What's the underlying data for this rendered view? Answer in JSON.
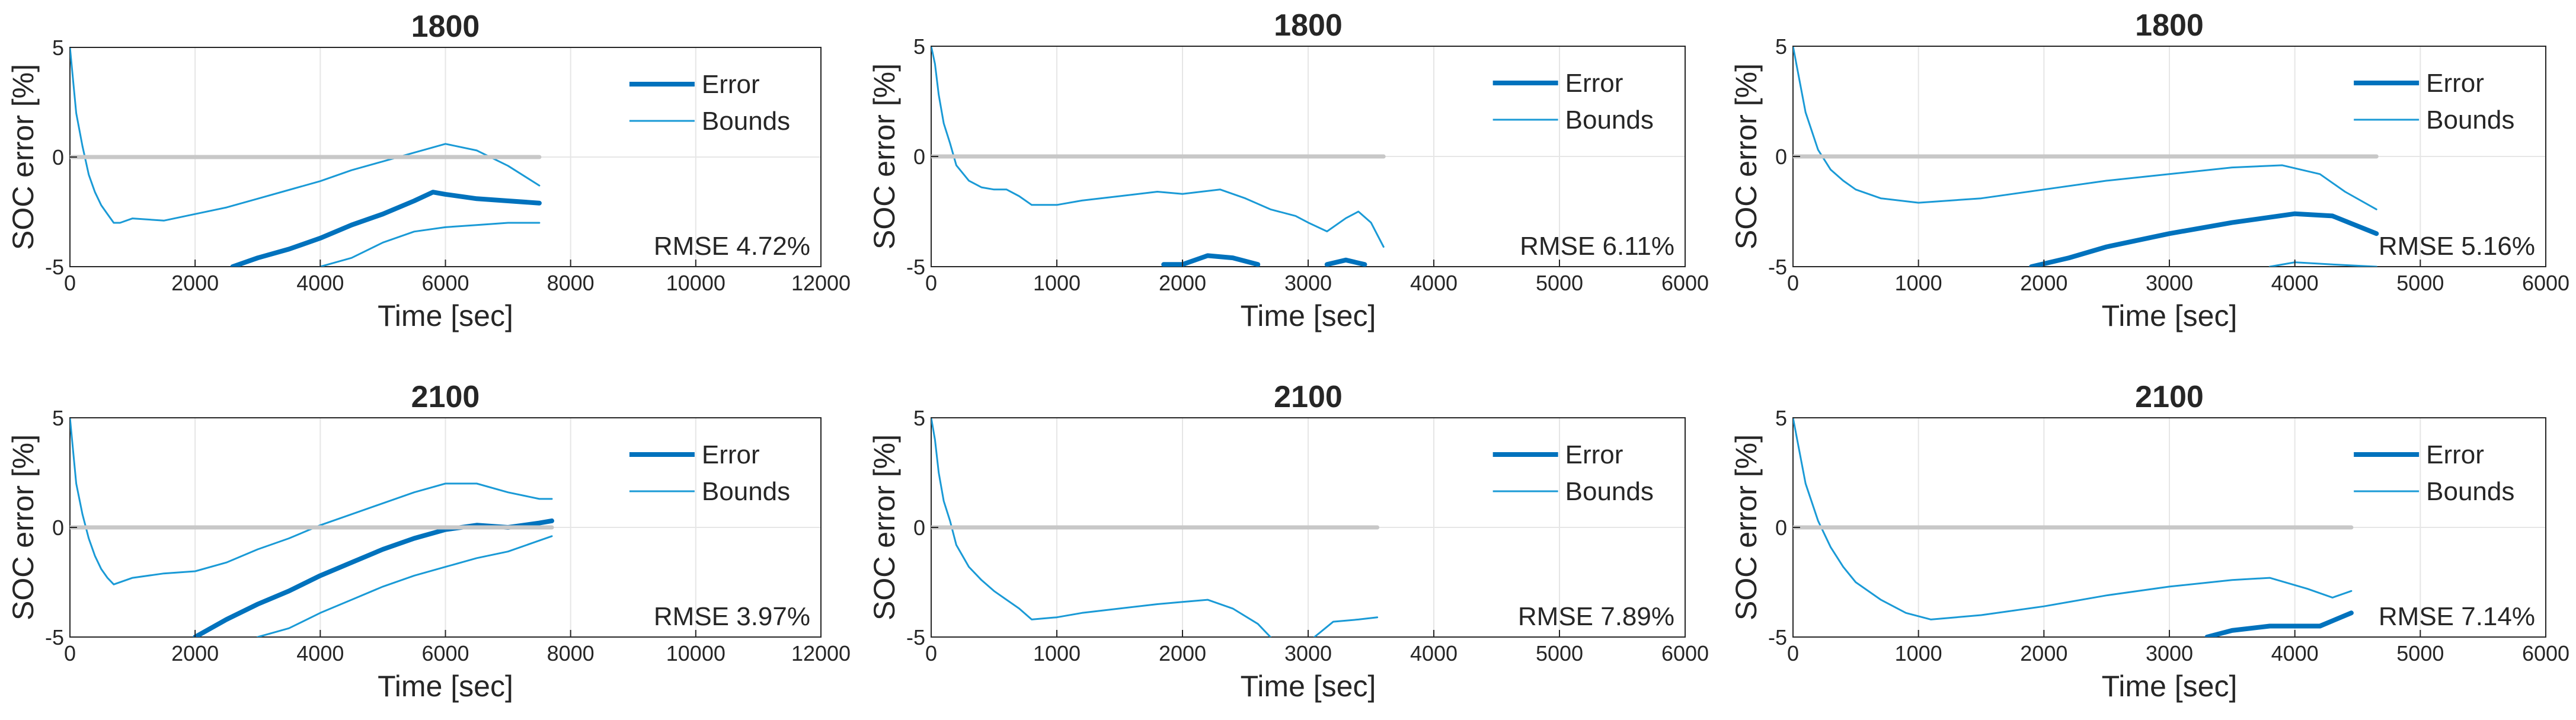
{
  "figure": {
    "colors": {
      "error": "#0072BD",
      "bounds": "#1A9AD6",
      "zero": "#C8C8C8",
      "grid": "#E6E6E6",
      "axis": "#262626"
    },
    "line_styles": {
      "error_width": "thick",
      "bounds_width": "thin"
    },
    "grid": true,
    "legend_placement": "top-right"
  },
  "chart_data": [
    {
      "type": "line",
      "title": "1800",
      "xlabel": "Time [sec]",
      "ylabel": "SOC error [%]",
      "xlim": [
        0,
        12000
      ],
      "ylim": [
        -5,
        5
      ],
      "xticks": [
        0,
        2000,
        4000,
        6000,
        8000,
        10000,
        12000
      ],
      "yticks": [
        -5,
        0,
        5
      ],
      "legend": [
        "Error",
        "Bounds"
      ],
      "annotation": "RMSE 4.72%",
      "series": [
        {
          "name": "Error",
          "x": [
            2600,
            3000,
            3500,
            4000,
            4500,
            5000,
            5500,
            5800,
            6000,
            6500,
            7000,
            7500
          ],
          "y": [
            -5,
            -4.6,
            -4.2,
            -3.7,
            -3.1,
            -2.6,
            -2.0,
            -1.6,
            -1.7,
            -1.9,
            -2.0,
            -2.1
          ]
        },
        {
          "name": "Bounds",
          "x": [
            0,
            50,
            100,
            200,
            300,
            400,
            500,
            600,
            700,
            800,
            1000,
            1500,
            2000,
            2500,
            3000,
            3500,
            4000,
            4500,
            5000,
            5500,
            6000,
            6500,
            7000,
            7500
          ],
          "y": [
            5,
            3.5,
            2,
            0.5,
            -0.8,
            -1.6,
            -2.2,
            -2.6,
            -3.0,
            -3.0,
            -2.8,
            -2.9,
            -2.6,
            -2.3,
            -1.9,
            -1.5,
            -1.1,
            -0.6,
            -0.2,
            0.2,
            0.6,
            0.3,
            -0.4,
            -1.3
          ]
        },
        {
          "name": "Bounds",
          "x": [
            4000,
            4500,
            5000,
            5500,
            6000,
            6500,
            7000,
            7500
          ],
          "y": [
            -5,
            -4.6,
            -3.9,
            -3.4,
            -3.2,
            -3.1,
            -3.0,
            -3.0
          ]
        },
        {
          "name": "",
          "x": [
            0,
            7500
          ],
          "y": [
            0,
            0
          ]
        }
      ]
    },
    {
      "type": "line",
      "title": "1800",
      "xlabel": "Time [sec]",
      "ylabel": "SOC error [%]",
      "xlim": [
        0,
        6000
      ],
      "ylim": [
        -5,
        5
      ],
      "xticks": [
        0,
        1000,
        2000,
        3000,
        4000,
        5000,
        6000
      ],
      "yticks": [
        -5,
        0,
        5
      ],
      "legend": [
        "Error",
        "Bounds"
      ],
      "annotation": "RMSE 6.11%",
      "series": [
        {
          "name": "Error",
          "x": [
            1850,
            2000,
            2200,
            2400,
            2600
          ],
          "y": [
            -4.9,
            -4.9,
            -4.5,
            -4.6,
            -4.9
          ]
        },
        {
          "name": "Error",
          "x": [
            3150,
            3300,
            3450
          ],
          "y": [
            -4.9,
            -4.7,
            -4.9
          ]
        },
        {
          "name": "Bounds",
          "x": [
            0,
            30,
            60,
            100,
            150,
            200,
            300,
            400,
            500,
            600,
            700,
            800,
            1000,
            1200,
            1500,
            1800,
            2000,
            2300,
            2500,
            2700,
            2900,
            3000,
            3150,
            3300,
            3400,
            3500,
            3600
          ],
          "y": [
            5,
            4.2,
            2.8,
            1.5,
            0.6,
            -0.4,
            -1.1,
            -1.4,
            -1.5,
            -1.5,
            -1.8,
            -2.2,
            -2.2,
            -2.0,
            -1.8,
            -1.6,
            -1.7,
            -1.5,
            -1.9,
            -2.4,
            -2.7,
            -3.0,
            -3.4,
            -2.8,
            -2.5,
            -3.0,
            -4.1
          ]
        },
        {
          "name": "",
          "x": [
            0,
            3600
          ],
          "y": [
            0,
            0
          ]
        }
      ]
    },
    {
      "type": "line",
      "title": "1800",
      "xlabel": "Time [sec]",
      "ylabel": "SOC error [%]",
      "xlim": [
        0,
        6000
      ],
      "ylim": [
        -5,
        5
      ],
      "xticks": [
        0,
        1000,
        2000,
        3000,
        4000,
        5000,
        6000
      ],
      "yticks": [
        -5,
        0,
        5
      ],
      "legend": [
        "Error",
        "Bounds"
      ],
      "annotation": "RMSE 5.16%",
      "series": [
        {
          "name": "Error",
          "x": [
            1900,
            2200,
            2500,
            3000,
            3500,
            4000,
            4300,
            4650
          ],
          "y": [
            -5,
            -4.6,
            -4.1,
            -3.5,
            -3.0,
            -2.6,
            -2.7,
            -3.5
          ]
        },
        {
          "name": "Bounds",
          "x": [
            0,
            50,
            100,
            200,
            300,
            400,
            500,
            700,
            1000,
            1500,
            2000,
            2500,
            3000,
            3500,
            3900,
            4200,
            4400,
            4650
          ],
          "y": [
            5,
            3.5,
            2,
            0.3,
            -0.6,
            -1.1,
            -1.5,
            -1.9,
            -2.1,
            -1.9,
            -1.5,
            -1.1,
            -0.8,
            -0.5,
            -0.4,
            -0.8,
            -1.6,
            -2.4
          ]
        },
        {
          "name": "Bounds",
          "x": [
            3800,
            4000,
            4300,
            4650
          ],
          "y": [
            -5,
            -4.8,
            -4.9,
            -5
          ]
        },
        {
          "name": "",
          "x": [
            0,
            4650
          ],
          "y": [
            0,
            0
          ]
        }
      ]
    },
    {
      "type": "line",
      "title": "2100",
      "xlabel": "Time [sec]",
      "ylabel": "SOC error [%]",
      "xlim": [
        0,
        12000
      ],
      "ylim": [
        -5,
        5
      ],
      "xticks": [
        0,
        2000,
        4000,
        6000,
        8000,
        10000,
        12000
      ],
      "yticks": [
        -5,
        0,
        5
      ],
      "legend": [
        "Error",
        "Bounds"
      ],
      "annotation": "RMSE 3.97%",
      "series": [
        {
          "name": "Error",
          "x": [
            2000,
            2500,
            3000,
            3500,
            4000,
            4500,
            5000,
            5500,
            6000,
            6500,
            7000,
            7500,
            7700
          ],
          "y": [
            -5,
            -4.2,
            -3.5,
            -2.9,
            -2.2,
            -1.6,
            -1.0,
            -0.5,
            -0.1,
            0.1,
            0.0,
            0.2,
            0.3
          ]
        },
        {
          "name": "Bounds",
          "x": [
            0,
            50,
            100,
            200,
            300,
            400,
            500,
            600,
            700,
            1000,
            1500,
            2000,
            2500,
            3000,
            3500,
            4000,
            4500,
            5000,
            5500,
            6000,
            6500,
            7000,
            7500,
            7700
          ],
          "y": [
            5,
            3.5,
            2,
            0.6,
            -0.5,
            -1.3,
            -1.9,
            -2.3,
            -2.6,
            -2.3,
            -2.1,
            -2.0,
            -1.6,
            -1.0,
            -0.5,
            0.1,
            0.6,
            1.1,
            1.6,
            2.0,
            2.0,
            1.6,
            1.3,
            1.3
          ]
        },
        {
          "name": "Bounds",
          "x": [
            3000,
            3500,
            4000,
            4500,
            5000,
            5500,
            6000,
            6500,
            7000,
            7500,
            7700
          ],
          "y": [
            -5,
            -4.6,
            -3.9,
            -3.3,
            -2.7,
            -2.2,
            -1.8,
            -1.4,
            -1.1,
            -0.6,
            -0.4
          ]
        },
        {
          "name": "",
          "x": [
            0,
            7700
          ],
          "y": [
            0,
            0
          ]
        }
      ]
    },
    {
      "type": "line",
      "title": "2100",
      "xlabel": "Time [sec]",
      "ylabel": "SOC error [%]",
      "xlim": [
        0,
        6000
      ],
      "ylim": [
        -5,
        5
      ],
      "xticks": [
        0,
        1000,
        2000,
        3000,
        4000,
        5000,
        6000
      ],
      "yticks": [
        -5,
        0,
        5
      ],
      "legend": [
        "Error",
        "Bounds"
      ],
      "annotation": "RMSE 7.89%",
      "series": [
        {
          "name": "Bounds",
          "x": [
            0,
            30,
            60,
            100,
            150,
            200,
            300,
            400,
            500,
            600,
            700,
            800,
            1000,
            1200,
            1500,
            1800,
            2000,
            2200,
            2400,
            2600,
            2700
          ],
          "y": [
            5,
            4,
            2.5,
            1.2,
            0.3,
            -0.8,
            -1.8,
            -2.4,
            -2.9,
            -3.3,
            -3.7,
            -4.2,
            -4.1,
            -3.9,
            -3.7,
            -3.5,
            -3.4,
            -3.3,
            -3.7,
            -4.4,
            -5
          ]
        },
        {
          "name": "Bounds",
          "x": [
            3050,
            3200,
            3400,
            3550
          ],
          "y": [
            -5,
            -4.3,
            -4.2,
            -4.1
          ]
        },
        {
          "name": "",
          "x": [
            0,
            3550
          ],
          "y": [
            0,
            0
          ]
        }
      ]
    },
    {
      "type": "line",
      "title": "2100",
      "xlabel": "Time [sec]",
      "ylabel": "SOC error [%]",
      "xlim": [
        0,
        6000
      ],
      "ylim": [
        -5,
        5
      ],
      "xticks": [
        0,
        1000,
        2000,
        3000,
        4000,
        5000,
        6000
      ],
      "yticks": [
        -5,
        0,
        5
      ],
      "legend": [
        "Error",
        "Bounds"
      ],
      "annotation": "RMSE 7.14%",
      "series": [
        {
          "name": "Error",
          "x": [
            3300,
            3500,
            3800,
            4000,
            4200,
            4450
          ],
          "y": [
            -5,
            -4.7,
            -4.5,
            -4.5,
            -4.5,
            -3.9
          ]
        },
        {
          "name": "Bounds",
          "x": [
            0,
            50,
            100,
            200,
            300,
            400,
            500,
            700,
            900,
            1100,
            1500,
            2000,
            2500,
            3000,
            3500,
            3800,
            4100,
            4300,
            4450
          ],
          "y": [
            5,
            3.5,
            2,
            0.3,
            -0.9,
            -1.8,
            -2.5,
            -3.3,
            -3.9,
            -4.2,
            -4.0,
            -3.6,
            -3.1,
            -2.7,
            -2.4,
            -2.3,
            -2.8,
            -3.2,
            -2.9
          ]
        },
        {
          "name": "",
          "x": [
            0,
            4450
          ],
          "y": [
            0,
            0
          ]
        }
      ]
    }
  ]
}
